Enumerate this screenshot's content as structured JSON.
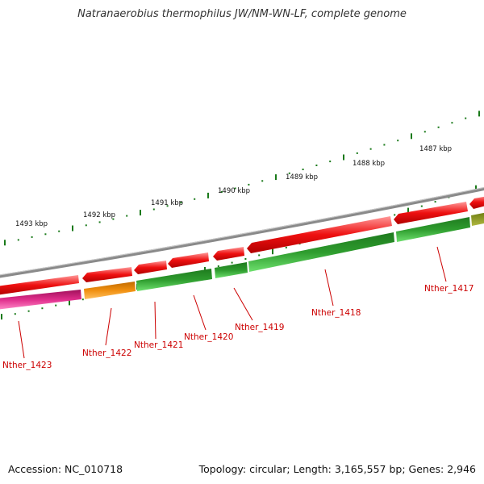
{
  "title": "Natranaerobius thermophilus JW/NM-WN-LF, complete genome",
  "footer": {
    "accession": "Accession: NC_010718",
    "summary": "Topology: circular; Length: 3,165,557 bp; Genes: 2,946"
  },
  "scale_labels": [
    {
      "kbp": 1493,
      "text": "1493 kbp"
    },
    {
      "kbp": 1492,
      "text": "1492 kbp"
    },
    {
      "kbp": 1491,
      "text": "1491 kbp"
    },
    {
      "kbp": 1490,
      "text": "1490 kbp"
    },
    {
      "kbp": 1489,
      "text": "1489 kbp"
    },
    {
      "kbp": 1488,
      "text": "1488 kbp"
    },
    {
      "kbp": 1487,
      "text": "1487 kbp"
    }
  ],
  "gene_labels": [
    {
      "text": "Nther_1423"
    },
    {
      "text": "Nther_1422"
    },
    {
      "text": "Nther_1421"
    },
    {
      "text": "Nther_1420"
    },
    {
      "text": "Nther_1419"
    },
    {
      "text": "Nther_1418"
    },
    {
      "text": "Nther_1417"
    }
  ],
  "colors": {
    "backbone": "#8a8a8a",
    "gene": "#e00000",
    "cds_green": "#2ea82e",
    "cds_pink": "#e0308a",
    "cds_orange": "#f09010",
    "cds_olive": "#8a9a20",
    "scale": "#1a7a1a",
    "label": "#cc0000"
  }
}
